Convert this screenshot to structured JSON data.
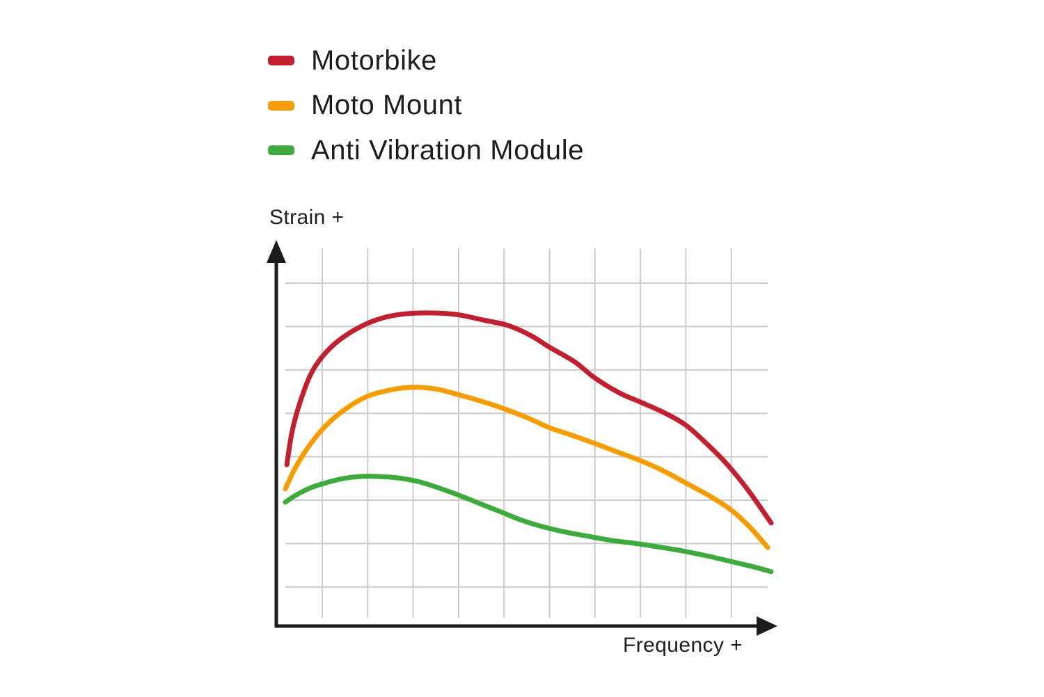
{
  "page": {
    "background": "#ffffff",
    "text_color": "#1d1d1b"
  },
  "chart_data": {
    "type": "line",
    "title": "",
    "xlabel": "Frequency +",
    "ylabel": "Strain +",
    "xlim": [
      0,
      100
    ],
    "ylim": [
      0,
      100
    ],
    "tick_labels": "none",
    "grid": {
      "on": true,
      "vertical_lines": 10,
      "horizontal_lines": 8,
      "color": "#cbcbcb"
    },
    "axis_color": "#1d1d1b",
    "legend_position": "top-left",
    "legend_entries": [
      "Motorbike",
      "Moto Mount",
      "Anti Vibration Module"
    ],
    "series": [
      {
        "name": "Motorbike",
        "color": "#c0202f",
        "points": [
          [
            0.3,
            42.7
          ],
          [
            1.4,
            51.6
          ],
          [
            3.2,
            59.9
          ],
          [
            5.7,
            67.8
          ],
          [
            9.3,
            73.7
          ],
          [
            13.6,
            77.9
          ],
          [
            18.6,
            81.0
          ],
          [
            23.6,
            82.5
          ],
          [
            29.4,
            82.9
          ],
          [
            35.1,
            82.5
          ],
          [
            40.8,
            81.0
          ],
          [
            45.8,
            79.6
          ],
          [
            50.4,
            77.0
          ],
          [
            54.4,
            73.8
          ],
          [
            59.5,
            70.0
          ],
          [
            63.8,
            65.6
          ],
          [
            68.8,
            61.7
          ],
          [
            73.1,
            59.3
          ],
          [
            78.1,
            56.4
          ],
          [
            82.4,
            53.2
          ],
          [
            86.7,
            48.3
          ],
          [
            91.0,
            42.7
          ],
          [
            95.3,
            35.9
          ],
          [
            100,
            27.3
          ]
        ]
      },
      {
        "name": "Moto Mount",
        "color": "#f59c00",
        "points": [
          [
            0,
            36.3
          ],
          [
            2.1,
            42.0
          ],
          [
            5.0,
            47.9
          ],
          [
            8.3,
            53.0
          ],
          [
            12.2,
            57.3
          ],
          [
            16.5,
            60.6
          ],
          [
            21.2,
            62.4
          ],
          [
            26.1,
            63.2
          ],
          [
            30.8,
            62.8
          ],
          [
            35.5,
            61.3
          ],
          [
            40.4,
            59.5
          ],
          [
            45.1,
            57.5
          ],
          [
            49.9,
            55.1
          ],
          [
            54.4,
            52.5
          ],
          [
            59.0,
            50.5
          ],
          [
            63.8,
            48.3
          ],
          [
            68.5,
            46.0
          ],
          [
            73.1,
            43.8
          ],
          [
            77.8,
            41.1
          ],
          [
            82.4,
            37.9
          ],
          [
            87.1,
            34.6
          ],
          [
            91.7,
            30.8
          ],
          [
            95.6,
            26.2
          ],
          [
            99.3,
            20.8
          ]
        ]
      },
      {
        "name": "Anti Vibration Module",
        "color": "#3ea93c",
        "points": [
          [
            0,
            32.8
          ],
          [
            2.1,
            34.6
          ],
          [
            5.0,
            36.5
          ],
          [
            8.3,
            37.9
          ],
          [
            11.7,
            39.0
          ],
          [
            15.5,
            39.6
          ],
          [
            19.3,
            39.6
          ],
          [
            23.2,
            39.2
          ],
          [
            27.2,
            38.3
          ],
          [
            31.5,
            36.6
          ],
          [
            35.8,
            34.6
          ],
          [
            40.1,
            32.4
          ],
          [
            44.4,
            30.2
          ],
          [
            48.7,
            28.0
          ],
          [
            53.0,
            26.3
          ],
          [
            57.6,
            24.9
          ],
          [
            62.3,
            23.8
          ],
          [
            67.0,
            22.7
          ],
          [
            71.9,
            21.9
          ],
          [
            76.6,
            21.0
          ],
          [
            81.7,
            19.9
          ],
          [
            86.7,
            18.6
          ],
          [
            91.7,
            17.1
          ],
          [
            96.0,
            15.8
          ],
          [
            100,
            14.4
          ]
        ]
      }
    ]
  }
}
